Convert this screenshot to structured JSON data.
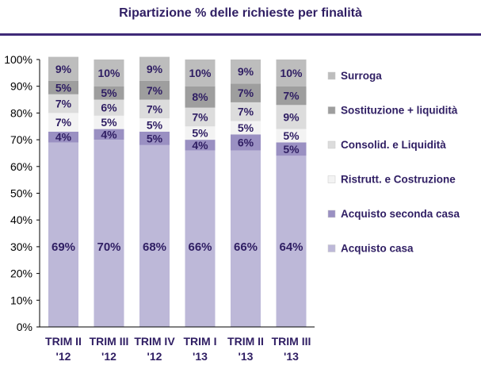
{
  "header": {
    "title": "Ripartizione % delle richieste per finalità"
  },
  "chart_data": {
    "type": "bar",
    "stacked": true,
    "percent": true,
    "title": "Ripartizione % delle richieste per finalità",
    "categories": [
      "TRIM II '12",
      "TRIM III '12",
      "TRIM IV '12",
      "TRIM I '13",
      "TRIM II '13",
      "TRIM III '13"
    ],
    "category_lines": [
      [
        "TRIM II",
        "'12"
      ],
      [
        "TRIM III",
        "'12"
      ],
      [
        "TRIM IV",
        "'12"
      ],
      [
        "TRIM I",
        "'13"
      ],
      [
        "TRIM II",
        "'13"
      ],
      [
        "TRIM III",
        "'13"
      ]
    ],
    "ylim": [
      0,
      100
    ],
    "yticks": [
      0,
      10,
      20,
      30,
      40,
      50,
      60,
      70,
      80,
      90,
      100
    ],
    "ytick_labels": [
      "0%",
      "10%",
      "20%",
      "30%",
      "40%",
      "50%",
      "60%",
      "70%",
      "80%",
      "90%",
      "100%"
    ],
    "grid": false,
    "legend_position": "right",
    "series": [
      {
        "name": "Acquisto casa",
        "values": [
          69,
          70,
          68,
          66,
          66,
          64
        ],
        "labels": [
          "69%",
          "70%",
          "68%",
          "66%",
          "66%",
          "64%"
        ],
        "color": "#bdb8d8"
      },
      {
        "name": "Acquisto seconda casa",
        "values": [
          4,
          4,
          5,
          4,
          6,
          5
        ],
        "labels": [
          "4%",
          "4%",
          "5%",
          "4%",
          "6%",
          "5%"
        ],
        "color": "#9a90c2"
      },
      {
        "name": "Ristrutt. e Costruzione",
        "values": [
          7,
          5,
          5,
          5,
          5,
          5
        ],
        "labels": [
          "7%",
          "5%",
          "5%",
          "5%",
          "5%",
          "5%"
        ],
        "color": "#f3f3f3"
      },
      {
        "name": "Consolid. e Liquidità",
        "values": [
          7,
          6,
          7,
          7,
          7,
          9
        ],
        "labels": [
          "7%",
          "6%",
          "7%",
          "7%",
          "7%",
          "9%"
        ],
        "color": "#dcdcdc"
      },
      {
        "name": "Sostituzione + liquidità",
        "values": [
          5,
          5,
          7,
          8,
          7,
          7
        ],
        "labels": [
          "5%",
          "5%",
          "7%",
          "8%",
          "7%",
          "7%"
        ],
        "color": "#9e9e9e"
      },
      {
        "name": "Surroga",
        "values": [
          9,
          10,
          9,
          10,
          9,
          10
        ],
        "labels": [
          "9%",
          "10%",
          "9%",
          "10%",
          "9%",
          "10%"
        ],
        "color": "#bdbdbd"
      }
    ],
    "label_color": "#2f1e63"
  }
}
